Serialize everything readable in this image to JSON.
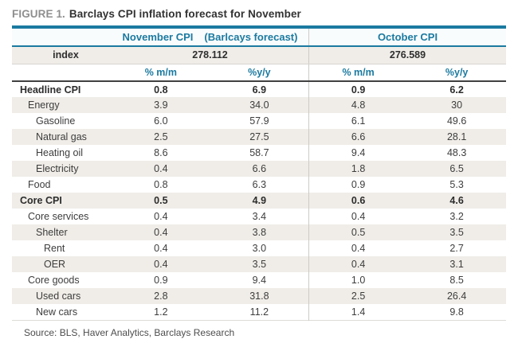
{
  "figure": {
    "label": "FIGURE 1.",
    "title": "Barclays CPI inflation forecast for November"
  },
  "chart_data": {
    "type": "table",
    "title": "Barclays CPI inflation forecast for November",
    "groups": {
      "november": {
        "header": "November CPI",
        "header_suffix": "(Barlcays forecast)",
        "index_value": "278.112"
      },
      "october": {
        "header": "October CPI",
        "index_value": "276.589"
      }
    },
    "index_label": "index",
    "col_headers": {
      "nov_mm": "% m/m",
      "nov_yy": "%y/y",
      "oct_mm": "% m/m",
      "oct_yy": "%y/y"
    },
    "rows": [
      {
        "label": "Headline CPI",
        "indent": 0,
        "bold": true,
        "nov_mm": "0.8",
        "nov_yy": "6.9",
        "oct_mm": "0.9",
        "oct_yy": "6.2"
      },
      {
        "label": "Energy",
        "indent": 1,
        "bold": false,
        "nov_mm": "3.9",
        "nov_yy": "34.0",
        "oct_mm": "4.8",
        "oct_yy": "30"
      },
      {
        "label": "Gasoline",
        "indent": 2,
        "bold": false,
        "nov_mm": "6.0",
        "nov_yy": "57.9",
        "oct_mm": "6.1",
        "oct_yy": "49.6"
      },
      {
        "label": "Natural gas",
        "indent": 2,
        "bold": false,
        "nov_mm": "2.5",
        "nov_yy": "27.5",
        "oct_mm": "6.6",
        "oct_yy": "28.1"
      },
      {
        "label": "Heating oil",
        "indent": 2,
        "bold": false,
        "nov_mm": "8.6",
        "nov_yy": "58.7",
        "oct_mm": "9.4",
        "oct_yy": "48.3"
      },
      {
        "label": "Electricity",
        "indent": 2,
        "bold": false,
        "nov_mm": "0.4",
        "nov_yy": "6.6",
        "oct_mm": "1.8",
        "oct_yy": "6.5"
      },
      {
        "label": "Food",
        "indent": 1,
        "bold": false,
        "nov_mm": "0.8",
        "nov_yy": "6.3",
        "oct_mm": "0.9",
        "oct_yy": "5.3"
      },
      {
        "label": "Core CPI",
        "indent": 0,
        "bold": true,
        "nov_mm": "0.5",
        "nov_yy": "4.9",
        "oct_mm": "0.6",
        "oct_yy": "4.6"
      },
      {
        "label": "Core services",
        "indent": 1,
        "bold": false,
        "nov_mm": "0.4",
        "nov_yy": "3.4",
        "oct_mm": "0.4",
        "oct_yy": "3.2"
      },
      {
        "label": "Shelter",
        "indent": 2,
        "bold": false,
        "nov_mm": "0.4",
        "nov_yy": "3.8",
        "oct_mm": "0.5",
        "oct_yy": "3.5"
      },
      {
        "label": "Rent",
        "indent": 3,
        "bold": false,
        "nov_mm": "0.4",
        "nov_yy": "3.0",
        "oct_mm": "0.4",
        "oct_yy": "2.7"
      },
      {
        "label": "OER",
        "indent": 3,
        "bold": false,
        "nov_mm": "0.4",
        "nov_yy": "3.5",
        "oct_mm": "0.4",
        "oct_yy": "3.1"
      },
      {
        "label": "Core goods",
        "indent": 1,
        "bold": false,
        "nov_mm": "0.9",
        "nov_yy": "9.4",
        "oct_mm": "1.0",
        "oct_yy": "8.5"
      },
      {
        "label": "Used cars",
        "indent": 2,
        "bold": false,
        "nov_mm": "2.8",
        "nov_yy": "31.8",
        "oct_mm": "2.5",
        "oct_yy": "26.4"
      },
      {
        "label": "New cars",
        "indent": 2,
        "bold": false,
        "nov_mm": "1.2",
        "nov_yy": "11.2",
        "oct_mm": "1.4",
        "oct_yy": "9.8"
      }
    ]
  },
  "source": "Source: BLS, Haver Analytics, Barclays Research",
  "colors": {
    "accent_teal": "#1b7aa0",
    "stripe_bg": "#f0ede8",
    "header_bg": "#f9fcfd",
    "dark_rule": "#404040",
    "divider_gray": "#cdcbc7",
    "text": "#3d3d3d",
    "figure_label_gray": "#8e8e8e"
  }
}
